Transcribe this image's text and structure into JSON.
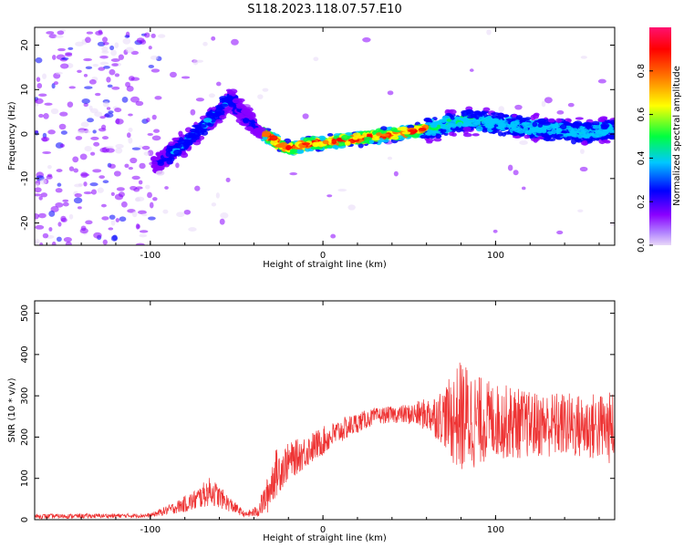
{
  "figure": {
    "title": "S118.2023.118.07.57.E10"
  },
  "chart_data": [
    {
      "type": "heatmap",
      "title": "S118.2023.118.07.57.E10",
      "xlabel": "Height of straight line (km)",
      "ylabel": "Frequency (Hz)",
      "xlim": [
        -167,
        169
      ],
      "ylim": [
        -25,
        24
      ],
      "x_ticks": [
        -100,
        0,
        100
      ],
      "y_ticks": [
        -20,
        -10,
        0,
        10,
        20
      ],
      "colorbar": {
        "label": "Normalized spectral amplitude",
        "range": [
          0.0,
          1.0
        ],
        "ticks": [
          0.0,
          0.2,
          0.4,
          0.6,
          0.8
        ],
        "colors": [
          "#e8d8f8",
          "#8a00ff",
          "#0000ff",
          "#00c8ff",
          "#00ff40",
          "#ffff00",
          "#ff7000",
          "#ff0000",
          "#ff1070"
        ]
      },
      "ridge": {
        "x": [
          -98,
          -90,
          -80,
          -70,
          -60,
          -54,
          -45,
          -38,
          -30,
          -22,
          -15,
          -8,
          0,
          10,
          20,
          30,
          40,
          50,
          60,
          70,
          80,
          90,
          100,
          110,
          120,
          130,
          140,
          150,
          160,
          169
        ],
        "y": [
          -7,
          -5,
          -2,
          1.5,
          5,
          8,
          4,
          1,
          -1,
          -3,
          -3,
          -2,
          -2,
          -1.5,
          -1,
          -0.5,
          0,
          0.5,
          1,
          2,
          3,
          3,
          2.5,
          2,
          1.5,
          1,
          0.8,
          0.5,
          0.8,
          1
        ]
      },
      "grid": false
    },
    {
      "type": "line",
      "xlabel": "Height of straight line (km)",
      "ylabel": "SNR (10 * v/v)",
      "xlim": [
        -167,
        169
      ],
      "ylim": [
        0,
        530
      ],
      "x_ticks": [
        -100,
        0,
        100
      ],
      "y_ticks": [
        0,
        100,
        200,
        300,
        400,
        500
      ],
      "series": [
        {
          "color": "#ee3333",
          "envelope": {
            "x": [
              -167,
              -100,
              -85,
              -75,
              -65,
              -55,
              -45,
              -38,
              -32,
              -28,
              -20,
              -10,
              0,
              10,
              20,
              30,
              40,
              50,
              60,
              70,
              75,
              80,
              85,
              90,
              100,
              110,
              120,
              130,
              140,
              150,
              160,
              169
            ],
            "mean": [
              8,
              10,
              30,
              45,
              70,
              40,
              12,
              20,
              60,
              110,
              140,
              165,
              190,
              215,
              235,
              250,
              255,
              255,
              255,
              250,
              245,
              250,
              245,
              240,
              240,
              235,
              230,
              230,
              230,
              225,
              225,
              220
            ],
            "spread": [
              6,
              5,
              15,
              25,
              35,
              20,
              6,
              15,
              45,
              60,
              45,
              40,
              35,
              30,
              25,
              20,
              20,
              25,
              40,
              70,
              110,
              140,
              130,
              110,
              90,
              90,
              80,
              80,
              80,
              80,
              85,
              90
            ]
          }
        }
      ],
      "grid": false
    }
  ]
}
